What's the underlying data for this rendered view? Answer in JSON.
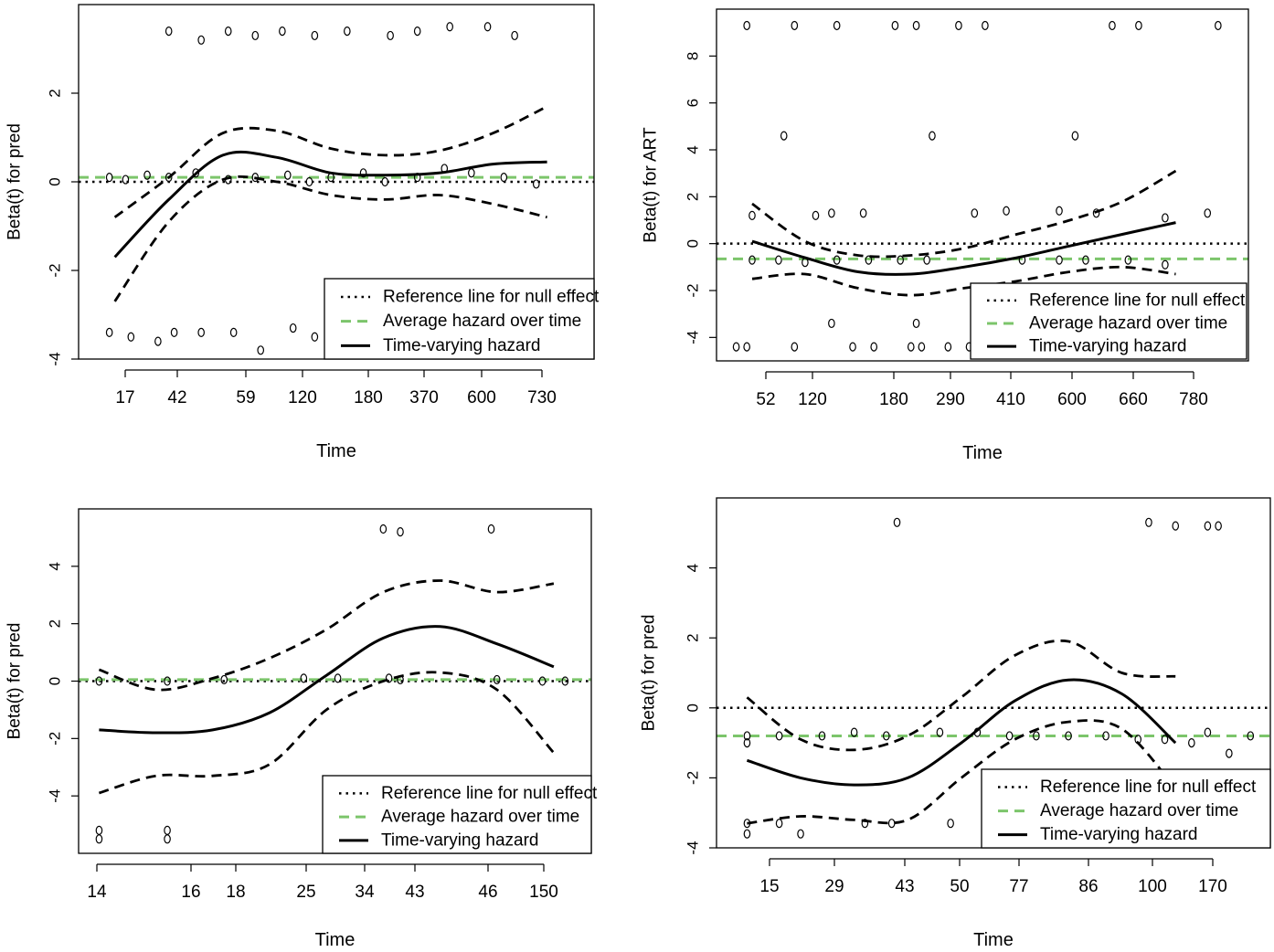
{
  "legend_items": [
    "Reference line for null effect",
    "Average hazard over time",
    "Time-varying hazard"
  ],
  "colors": {
    "reference": "#000000",
    "average": "#7cc56b",
    "time_varying": "#000000",
    "points": "#000000"
  },
  "chart_data": [
    {
      "type": "line",
      "title": "",
      "xlabel": "Time",
      "ylabel": "Beta(t) for pred",
      "x_ticks": [
        "17",
        "42",
        "59",
        "120",
        "180",
        "370",
        "600",
        "730"
      ],
      "x": [
        1,
        2,
        3,
        4,
        5,
        6,
        7,
        8,
        9
      ],
      "ylim": [
        -4,
        4
      ],
      "y_ticks": [
        -4,
        -2,
        0,
        2
      ],
      "reference_line": 0,
      "average_hazard": 0.1,
      "series": [
        {
          "name": "Time-varying hazard",
          "style": "solid",
          "values": [
            -1.7,
            -0.4,
            0.6,
            0.55,
            0.2,
            0.15,
            0.2,
            0.4,
            0.45
          ]
        },
        {
          "style": "dashed",
          "values": [
            -0.8,
            0.1,
            1.1,
            1.15,
            0.75,
            0.6,
            0.7,
            1.1,
            1.7
          ]
        },
        {
          "style": "dashed",
          "values": [
            -2.7,
            -0.9,
            0.05,
            0.0,
            -0.3,
            -0.4,
            -0.3,
            -0.5,
            -0.8
          ]
        }
      ],
      "points": [
        [
          0.9,
          0.1
        ],
        [
          1.2,
          0.05
        ],
        [
          1.6,
          0.15
        ],
        [
          2.0,
          0.1
        ],
        [
          2.5,
          0.2
        ],
        [
          3.1,
          0.05
        ],
        [
          3.6,
          0.1
        ],
        [
          4.2,
          0.15
        ],
        [
          4.6,
          0.0
        ],
        [
          5.0,
          0.1
        ],
        [
          5.6,
          0.2
        ],
        [
          6.0,
          0.0
        ],
        [
          6.6,
          0.1
        ],
        [
          7.1,
          0.3
        ],
        [
          7.6,
          0.2
        ],
        [
          8.2,
          0.1
        ],
        [
          8.8,
          -0.05
        ],
        [
          2.0,
          3.4
        ],
        [
          2.6,
          3.2
        ],
        [
          3.1,
          3.4
        ],
        [
          3.6,
          3.3
        ],
        [
          4.1,
          3.4
        ],
        [
          4.7,
          3.3
        ],
        [
          5.3,
          3.4
        ],
        [
          6.1,
          3.3
        ],
        [
          6.6,
          3.4
        ],
        [
          7.2,
          3.5
        ],
        [
          7.9,
          3.5
        ],
        [
          8.4,
          3.3
        ],
        [
          0.9,
          -3.4
        ],
        [
          1.3,
          -3.5
        ],
        [
          1.8,
          -3.6
        ],
        [
          2.1,
          -3.4
        ],
        [
          2.6,
          -3.4
        ],
        [
          3.2,
          -3.4
        ],
        [
          3.7,
          -3.8
        ],
        [
          4.3,
          -3.3
        ],
        [
          4.7,
          -3.5
        ]
      ]
    },
    {
      "type": "line",
      "title": "",
      "xlabel": "Time",
      "ylabel": "Beta(t) for ART",
      "x_ticks": [
        "52",
        "120",
        "180",
        "290",
        "410",
        "600",
        "660",
        "780"
      ],
      "x": [
        1,
        2,
        3,
        4,
        5,
        6,
        7,
        8,
        9
      ],
      "ylim": [
        -5,
        10
      ],
      "y_ticks": [
        -4,
        -2,
        0,
        2,
        4,
        6,
        8
      ],
      "reference_line": 0,
      "average_hazard": -0.65,
      "series": [
        {
          "name": "Time-varying hazard",
          "style": "solid",
          "values": [
            0.1,
            -0.6,
            -1.2,
            -1.3,
            -1.0,
            -0.6,
            -0.1,
            0.4,
            0.9
          ]
        },
        {
          "style": "dashed",
          "values": [
            1.7,
            0.1,
            -0.5,
            -0.5,
            -0.2,
            0.4,
            1.0,
            1.8,
            3.1
          ]
        },
        {
          "style": "dashed",
          "values": [
            -1.5,
            -1.3,
            -1.9,
            -2.2,
            -1.9,
            -1.6,
            -1.2,
            -1.0,
            -1.3
          ]
        }
      ],
      "points": [
        [
          0.9,
          9.3
        ],
        [
          1.8,
          9.3
        ],
        [
          2.6,
          9.3
        ],
        [
          3.7,
          9.3
        ],
        [
          4.1,
          9.3
        ],
        [
          4.9,
          9.3
        ],
        [
          5.4,
          9.3
        ],
        [
          7.8,
          9.3
        ],
        [
          8.3,
          9.3
        ],
        [
          9.8,
          9.3
        ],
        [
          1.6,
          4.6
        ],
        [
          4.4,
          4.6
        ],
        [
          7.1,
          4.6
        ],
        [
          1.0,
          1.2
        ],
        [
          2.2,
          1.2
        ],
        [
          2.5,
          1.3
        ],
        [
          3.1,
          1.3
        ],
        [
          5.2,
          1.3
        ],
        [
          5.8,
          1.4
        ],
        [
          6.8,
          1.4
        ],
        [
          7.5,
          1.3
        ],
        [
          8.8,
          1.1
        ],
        [
          9.6,
          1.3
        ],
        [
          1.0,
          -0.7
        ],
        [
          1.5,
          -0.7
        ],
        [
          2.0,
          -0.8
        ],
        [
          2.6,
          -0.7
        ],
        [
          3.2,
          -0.7
        ],
        [
          3.8,
          -0.7
        ],
        [
          4.3,
          -0.7
        ],
        [
          6.1,
          -0.7
        ],
        [
          6.8,
          -0.7
        ],
        [
          7.3,
          -0.7
        ],
        [
          8.1,
          -0.7
        ],
        [
          8.8,
          -0.9
        ],
        [
          0.7,
          -4.4
        ],
        [
          0.9,
          -4.4
        ],
        [
          1.8,
          -4.4
        ],
        [
          2.9,
          -4.4
        ],
        [
          3.3,
          -4.4
        ],
        [
          4.0,
          -4.4
        ],
        [
          4.2,
          -4.4
        ],
        [
          4.7,
          -4.4
        ],
        [
          5.1,
          -4.4
        ],
        [
          5.5,
          -4.4
        ],
        [
          5.7,
          -4.4
        ],
        [
          2.5,
          -3.4
        ],
        [
          4.1,
          -3.4
        ],
        [
          5.8,
          -3.3
        ]
      ]
    },
    {
      "type": "line",
      "title": "",
      "xlabel": "Time",
      "ylabel": "Beta(t) for pred",
      "x_ticks": [
        "14",
        "16",
        "18",
        "25",
        "34",
        "43",
        "46",
        "150"
      ],
      "x": [
        1,
        2,
        3,
        4,
        5,
        6,
        7,
        8,
        9
      ],
      "ylim": [
        -6,
        6
      ],
      "y_ticks": [
        -4,
        -2,
        0,
        2,
        4
      ],
      "reference_line": 0,
      "average_hazard": 0.05,
      "series": [
        {
          "name": "Time-varying hazard",
          "style": "solid",
          "values": [
            -1.7,
            -1.8,
            -1.7,
            -1.1,
            0.2,
            1.5,
            1.9,
            1.3,
            0.5
          ]
        },
        {
          "style": "dashed",
          "values": [
            0.4,
            -0.3,
            0.1,
            0.8,
            1.8,
            3.1,
            3.5,
            3.1,
            3.4
          ]
        },
        {
          "style": "dashed",
          "values": [
            -3.9,
            -3.3,
            -3.3,
            -2.9,
            -1.0,
            0.0,
            0.3,
            -0.3,
            -2.5
          ]
        }
      ],
      "points": [
        [
          1.0,
          0.0
        ],
        [
          2.2,
          0.0
        ],
        [
          3.2,
          0.05
        ],
        [
          4.6,
          0.1
        ],
        [
          5.2,
          0.1
        ],
        [
          6.1,
          0.1
        ],
        [
          6.3,
          0.05
        ],
        [
          8.0,
          0.05
        ],
        [
          8.8,
          0.0
        ],
        [
          9.2,
          0.0
        ],
        [
          6.0,
          5.3
        ],
        [
          6.3,
          5.2
        ],
        [
          7.9,
          5.3
        ],
        [
          1.0,
          -5.2
        ],
        [
          1.0,
          -5.5
        ],
        [
          2.2,
          -5.2
        ],
        [
          2.2,
          -5.5
        ]
      ]
    },
    {
      "type": "line",
      "title": "",
      "xlabel": "Time",
      "ylabel": "Beta(t) for pred",
      "x_ticks": [
        "15",
        "29",
        "43",
        "50",
        "77",
        "86",
        "100",
        "170"
      ],
      "x": [
        1,
        2,
        3,
        4,
        5,
        6,
        7,
        8,
        9
      ],
      "ylim": [
        -4,
        6
      ],
      "y_ticks": [
        -4,
        -2,
        0,
        2,
        4
      ],
      "reference_line": 0,
      "average_hazard": -0.8,
      "series": [
        {
          "name": "Time-varying hazard",
          "style": "solid",
          "values": [
            -1.5,
            -2.0,
            -2.2,
            -2.0,
            -1.0,
            0.2,
            0.8,
            0.4,
            -1.0
          ]
        },
        {
          "style": "dashed",
          "values": [
            0.3,
            -0.9,
            -1.2,
            -0.8,
            0.3,
            1.5,
            1.9,
            1.0,
            0.9
          ]
        },
        {
          "style": "dashed",
          "values": [
            -3.3,
            -3.1,
            -3.2,
            -3.2,
            -2.0,
            -0.9,
            -0.4,
            -0.6,
            -2.3
          ]
        }
      ],
      "points": [
        [
          1.0,
          -0.8
        ],
        [
          1.0,
          -1.0
        ],
        [
          1.6,
          -0.8
        ],
        [
          2.4,
          -0.8
        ],
        [
          3.0,
          -0.7
        ],
        [
          3.6,
          -0.8
        ],
        [
          4.6,
          -0.7
        ],
        [
          5.3,
          -0.7
        ],
        [
          5.9,
          -0.8
        ],
        [
          6.4,
          -0.8
        ],
        [
          7.0,
          -0.8
        ],
        [
          7.7,
          -0.8
        ],
        [
          8.3,
          -0.9
        ],
        [
          8.8,
          -0.9
        ],
        [
          9.3,
          -1.0
        ],
        [
          9.6,
          -0.7
        ],
        [
          10.0,
          -1.3
        ],
        [
          10.4,
          -0.8
        ],
        [
          1.0,
          -3.3
        ],
        [
          1.0,
          -3.6
        ],
        [
          1.6,
          -3.3
        ],
        [
          2.0,
          -3.6
        ],
        [
          3.2,
          -3.3
        ],
        [
          3.7,
          -3.3
        ],
        [
          4.8,
          -3.3
        ],
        [
          5.5,
          -3.3
        ],
        [
          6.2,
          -3.3
        ],
        [
          3.8,
          5.3
        ],
        [
          8.5,
          5.3
        ],
        [
          9.0,
          5.2
        ],
        [
          9.6,
          5.2
        ],
        [
          9.8,
          5.2
        ]
      ]
    }
  ]
}
